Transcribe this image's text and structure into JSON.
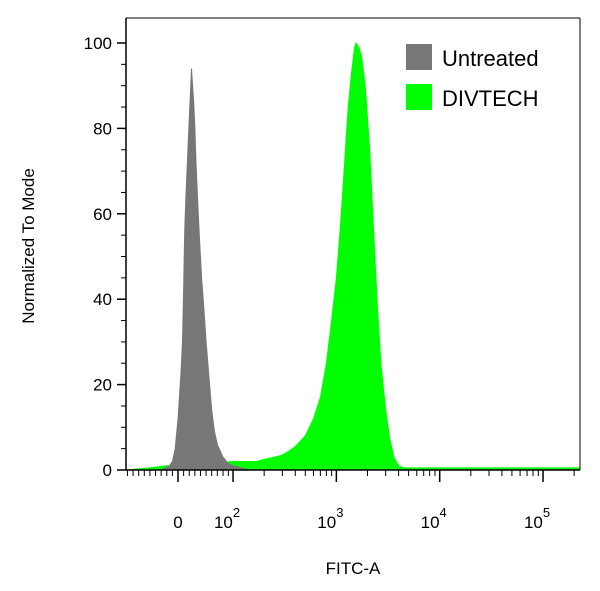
{
  "chart_data": {
    "type": "area",
    "title": "",
    "xlabel": "FITC-A",
    "ylabel": "Normalized To Mode",
    "x_scale": "biexponential",
    "xlim": [
      -100,
      300000
    ],
    "ylim": [
      0,
      100
    ],
    "x_ticks": [
      {
        "value": 0,
        "base": "0",
        "exp": ""
      },
      {
        "value": 100,
        "base": "10",
        "exp": "2"
      },
      {
        "value": 1000,
        "base": "10",
        "exp": "3"
      },
      {
        "value": 10000,
        "base": "10",
        "exp": "4"
      },
      {
        "value": 100000,
        "base": "10",
        "exp": "5"
      }
    ],
    "y_ticks": [
      "0",
      "20",
      "40",
      "60",
      "80",
      "100"
    ],
    "legend_position": "top-right",
    "grid": false,
    "series": [
      {
        "name": "DIVTECH",
        "color": "#00ff00",
        "points": [
          [
            -100,
            0
          ],
          [
            -50,
            0.5
          ],
          [
            -20,
            1
          ],
          [
            0,
            1
          ],
          [
            20,
            1.2
          ],
          [
            50,
            1.5
          ],
          [
            80,
            1.8
          ],
          [
            100,
            2
          ],
          [
            130,
            2
          ],
          [
            170,
            2
          ],
          [
            200,
            2.5
          ],
          [
            250,
            3
          ],
          [
            300,
            3.5
          ],
          [
            350,
            4.5
          ],
          [
            400,
            5.5
          ],
          [
            500,
            8
          ],
          [
            600,
            12
          ],
          [
            700,
            17
          ],
          [
            800,
            25
          ],
          [
            900,
            35
          ],
          [
            1000,
            45
          ],
          [
            1100,
            58
          ],
          [
            1200,
            72
          ],
          [
            1300,
            85
          ],
          [
            1400,
            93
          ],
          [
            1500,
            99
          ],
          [
            1550,
            100
          ],
          [
            1650,
            99
          ],
          [
            1750,
            97
          ],
          [
            1900,
            90
          ],
          [
            2100,
            75
          ],
          [
            2300,
            55
          ],
          [
            2500,
            38
          ],
          [
            2700,
            25
          ],
          [
            3000,
            14
          ],
          [
            3300,
            7
          ],
          [
            3600,
            3
          ],
          [
            4000,
            1
          ],
          [
            4500,
            0.5
          ],
          [
            5000,
            0.5
          ],
          [
            10000,
            0.5
          ],
          [
            50000,
            0.5
          ],
          [
            300000,
            0.5
          ]
        ]
      },
      {
        "name": "Untreated",
        "color": "#777777",
        "points": [
          [
            -100,
            0
          ],
          [
            -30,
            0
          ],
          [
            -15,
            1
          ],
          [
            -10,
            2
          ],
          [
            -5,
            5
          ],
          [
            0,
            12
          ],
          [
            5,
            22
          ],
          [
            8,
            30
          ],
          [
            10,
            42
          ],
          [
            12,
            56
          ],
          [
            14,
            64
          ],
          [
            16,
            70
          ],
          [
            18,
            76
          ],
          [
            20,
            82
          ],
          [
            22,
            88
          ],
          [
            24,
            94
          ],
          [
            26,
            90
          ],
          [
            28,
            86
          ],
          [
            30,
            80
          ],
          [
            32,
            72
          ],
          [
            35,
            63
          ],
          [
            38,
            55
          ],
          [
            42,
            45
          ],
          [
            46,
            38
          ],
          [
            50,
            30
          ],
          [
            55,
            22
          ],
          [
            60,
            14
          ],
          [
            65,
            9
          ],
          [
            70,
            6
          ],
          [
            80,
            3
          ],
          [
            90,
            1.5
          ],
          [
            100,
            1
          ],
          [
            120,
            0.5
          ],
          [
            150,
            0
          ],
          [
            300000,
            0
          ]
        ]
      }
    ]
  }
}
